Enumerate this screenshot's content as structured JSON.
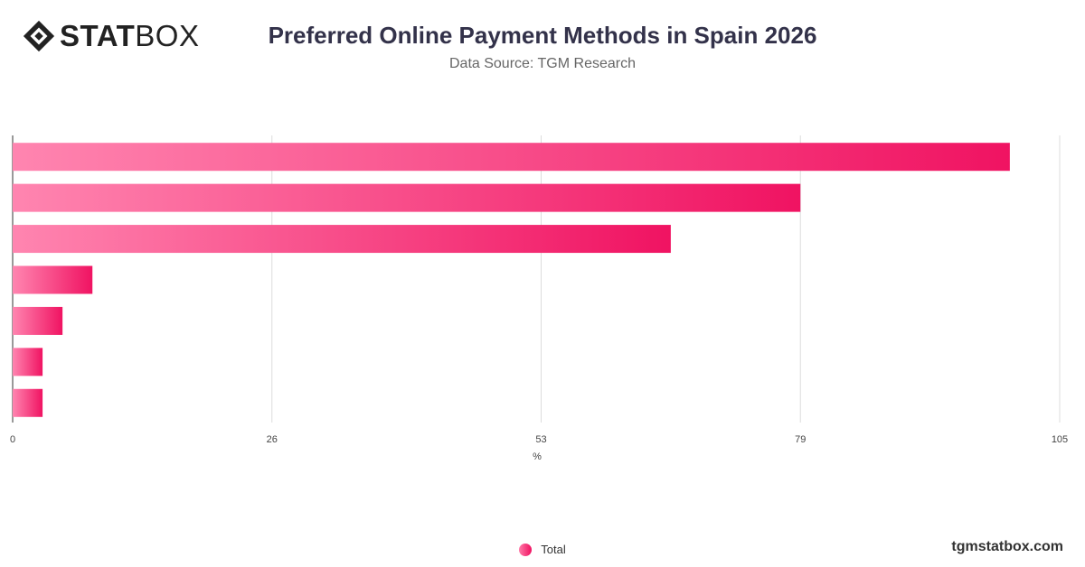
{
  "header": {
    "logo_bold": "STAT",
    "logo_light": "BOX",
    "title": "Preferred Online Payment Methods in Spain 2026",
    "subtitle": "Data Source: TGM Research"
  },
  "chart_data": {
    "type": "bar",
    "orientation": "horizontal",
    "categories": [
      "",
      "",
      "",
      "",
      "",
      "",
      ""
    ],
    "series": [
      {
        "name": "Total",
        "values": [
          100,
          79,
          66,
          8,
          5,
          3,
          3
        ]
      }
    ],
    "xlabel": "%",
    "xlim": [
      0,
      105
    ],
    "xticks": [
      0,
      26,
      53,
      79,
      105
    ],
    "grid": true,
    "legend_position": "bottom",
    "bar_gradient": [
      "#ff85b0",
      "#f01362"
    ]
  },
  "legend": {
    "label": "Total"
  },
  "footer": {
    "brand": "tgmstatbox.com"
  }
}
